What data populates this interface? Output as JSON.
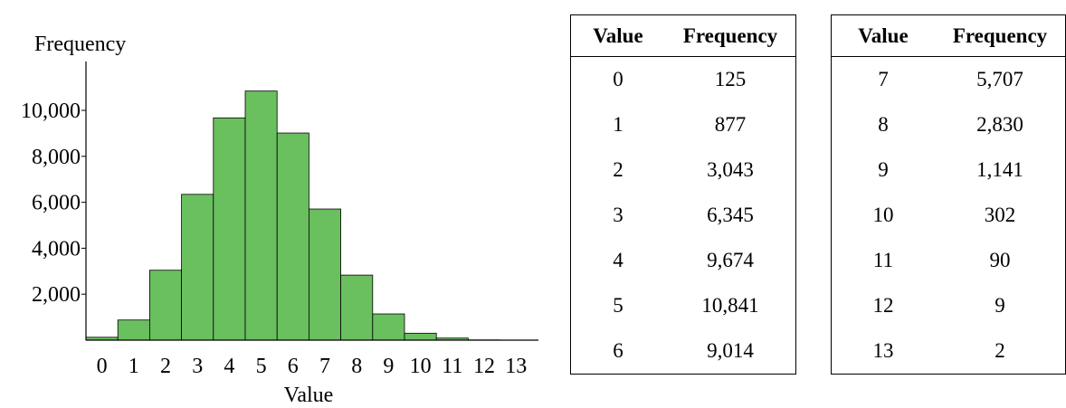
{
  "chart_data": {
    "type": "bar",
    "ylabel": "Frequency",
    "xlabel": "Value",
    "categories": [
      "0",
      "1",
      "2",
      "3",
      "4",
      "5",
      "6",
      "7",
      "8",
      "9",
      "10",
      "11",
      "12",
      "13"
    ],
    "values": [
      125,
      877,
      3043,
      6345,
      9674,
      10841,
      9014,
      5707,
      2830,
      1141,
      302,
      90,
      9,
      2
    ],
    "yticks": [
      "2,000",
      "4,000",
      "6,000",
      "8,000",
      "10,000"
    ],
    "ylim": [
      0,
      12000
    ],
    "grid": false,
    "bar_color": "#6abf5f",
    "bar_edge_color": "#000000"
  },
  "tables": [
    {
      "headers": [
        "Value",
        "Frequency"
      ],
      "rows": [
        [
          "0",
          "125"
        ],
        [
          "1",
          "877"
        ],
        [
          "2",
          "3,043"
        ],
        [
          "3",
          "6,345"
        ],
        [
          "4",
          "9,674"
        ],
        [
          "5",
          "10,841"
        ],
        [
          "6",
          "9,014"
        ]
      ]
    },
    {
      "headers": [
        "Value",
        "Frequency"
      ],
      "rows": [
        [
          "7",
          "5,707"
        ],
        [
          "8",
          "2,830"
        ],
        [
          "9",
          "1,141"
        ],
        [
          "10",
          "302"
        ],
        [
          "11",
          "90"
        ],
        [
          "12",
          "9"
        ],
        [
          "13",
          "2"
        ]
      ]
    }
  ]
}
